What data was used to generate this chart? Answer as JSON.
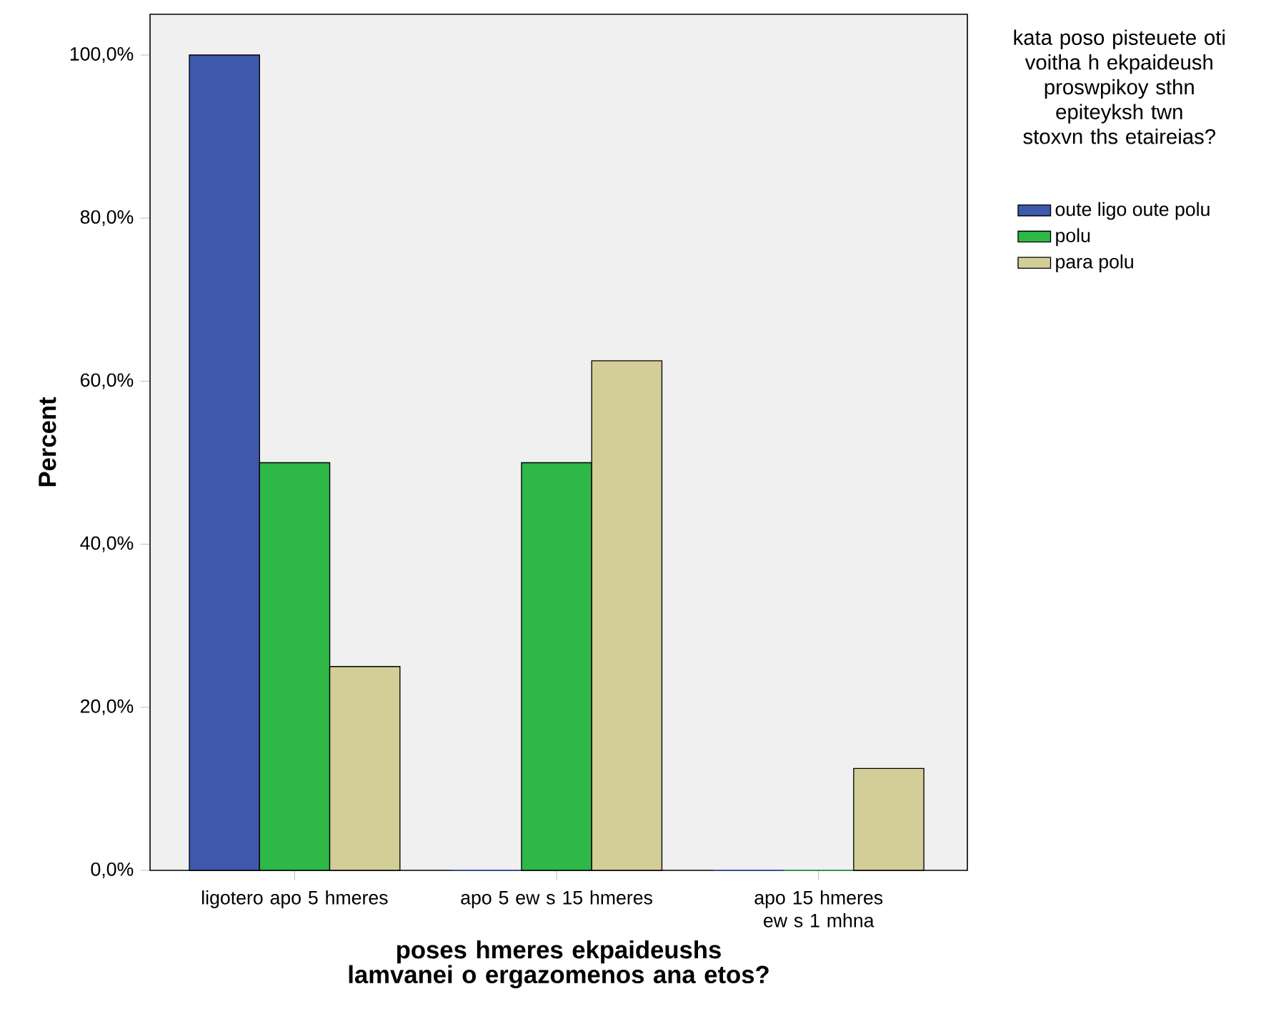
{
  "chart_data": {
    "type": "bar",
    "xlabel": "poses hmeres ekpaideushs lamvanei o ergazomenos ana etos?",
    "ylabel": "Percent",
    "legend_title": "kata poso pisteuete oti voitha h ekpaideush proswpikoy sthn epiteyksh twn stoxvn ths etaireias?",
    "categories": [
      "ligotero apo 5 hmeres",
      "apo 5 ew s 15 hmeres",
      "apo 15 hmeres ew s 1 mhna"
    ],
    "series": [
      {
        "name": "oute ligo oute polu",
        "color": "#3e58ac",
        "values": [
          100,
          0,
          0
        ]
      },
      {
        "name": "polu",
        "color": "#2eb848",
        "values": [
          50,
          50,
          0
        ]
      },
      {
        "name": "para polu",
        "color": "#d3ce97",
        "values": [
          25,
          62.5,
          12.5
        ]
      }
    ],
    "ylim": [
      0,
      105
    ],
    "yticks": [
      {
        "value": 0,
        "label": "0,0%"
      },
      {
        "value": 20,
        "label": "20,0%"
      },
      {
        "value": 40,
        "label": "40,0%"
      },
      {
        "value": 60,
        "label": "60,0%"
      },
      {
        "value": 80,
        "label": "80,0%"
      },
      {
        "value": 100,
        "label": "100,0%"
      }
    ],
    "legend": "right"
  }
}
